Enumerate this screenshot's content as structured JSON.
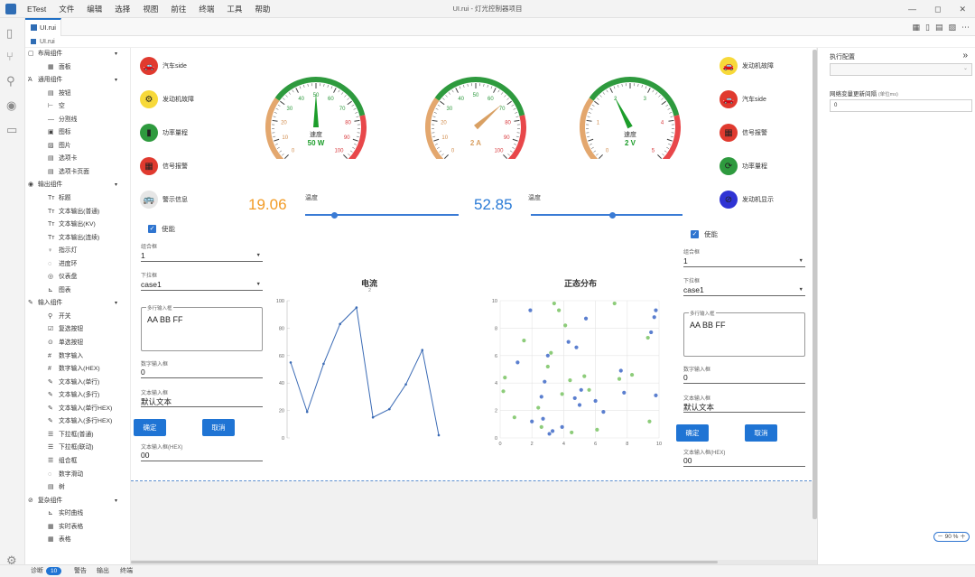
{
  "menubar": {
    "app": "ETest",
    "items": [
      "文件",
      "编辑",
      "选择",
      "视图",
      "前往",
      "终端",
      "工具",
      "帮助"
    ],
    "title": "UI.rui - 灯光控制器项目",
    "buttons": [
      "—",
      "◻",
      "✕"
    ]
  },
  "tabs": {
    "active": "UI.rui"
  },
  "breadcrumb": "UI.rui",
  "activity_icons": [
    "files-icon",
    "branch-icon",
    "search-icon",
    "eye-icon",
    "devices-icon",
    "gear-icon"
  ],
  "toolbar_icons": [
    "grid-icon",
    "doc-icon",
    "save-icon",
    "image-icon",
    "more-icon"
  ],
  "tree": [
    {
      "t": "grp",
      "label": "布局组件",
      "icon": "▢",
      "caret": "▾"
    },
    {
      "t": "sub",
      "label": "面板",
      "icon": "▦"
    },
    {
      "t": "grp",
      "label": "通用组件",
      "icon": "Ά",
      "caret": "▾"
    },
    {
      "t": "sub",
      "label": "按钮",
      "icon": "▤"
    },
    {
      "t": "sub",
      "label": "空",
      "icon": "⊢"
    },
    {
      "t": "sub",
      "label": "分割线",
      "icon": "—"
    },
    {
      "t": "sub",
      "label": "图标",
      "icon": "▣"
    },
    {
      "t": "sub",
      "label": "图片",
      "icon": "▨"
    },
    {
      "t": "sub",
      "label": "选项卡",
      "icon": "▤"
    },
    {
      "t": "sub",
      "label": "选项卡页面",
      "icon": "▤"
    },
    {
      "t": "grp",
      "label": "输出组件",
      "icon": "◉",
      "caret": "▾"
    },
    {
      "t": "sub",
      "label": "标题",
      "icon": "Tт"
    },
    {
      "t": "sub",
      "label": "文本输出(普通)",
      "icon": "Tт"
    },
    {
      "t": "sub",
      "label": "文本输出(KV)",
      "icon": "Tт"
    },
    {
      "t": "sub",
      "label": "文本输出(连续)",
      "icon": "Tт"
    },
    {
      "t": "sub",
      "label": "指示灯",
      "icon": "♀"
    },
    {
      "t": "sub",
      "label": "进度环",
      "icon": "◌"
    },
    {
      "t": "sub",
      "label": "仪表盘",
      "icon": "◎"
    },
    {
      "t": "sub",
      "label": "图表",
      "icon": "⊾"
    },
    {
      "t": "grp",
      "label": "输入组件",
      "icon": "✎",
      "caret": "▾"
    },
    {
      "t": "sub",
      "label": "开关",
      "icon": "⚲"
    },
    {
      "t": "sub",
      "label": "复选按钮",
      "icon": "☑"
    },
    {
      "t": "sub",
      "label": "单选按钮",
      "icon": "⊙"
    },
    {
      "t": "sub",
      "label": "数字输入",
      "icon": "#"
    },
    {
      "t": "sub",
      "label": "数字输入(HEX)",
      "icon": "#"
    },
    {
      "t": "sub",
      "label": "文本输入(单行)",
      "icon": "✎"
    },
    {
      "t": "sub",
      "label": "文本输入(多行)",
      "icon": "✎"
    },
    {
      "t": "sub",
      "label": "文本输入(单行HEX)",
      "icon": "✎"
    },
    {
      "t": "sub",
      "label": "文本输入(多行HEX)",
      "icon": "✎"
    },
    {
      "t": "sub",
      "label": "下拉框(普通)",
      "icon": "☰"
    },
    {
      "t": "sub",
      "label": "下拉框(联动)",
      "icon": "☰"
    },
    {
      "t": "sub",
      "label": "组合框",
      "icon": "☰"
    },
    {
      "t": "sub",
      "label": "数字滑动",
      "icon": "◌"
    },
    {
      "t": "sub",
      "label": "树",
      "icon": "▤"
    },
    {
      "t": "grp",
      "label": "复杂组件",
      "icon": "⊘",
      "caret": "▾"
    },
    {
      "t": "sub",
      "label": "实时曲线",
      "icon": "⊾"
    },
    {
      "t": "sub",
      "label": "实时表格",
      "icon": "▦"
    },
    {
      "t": "sub",
      "label": "表格",
      "icon": "▦"
    }
  ],
  "indicators_left": [
    {
      "label": "汽车side",
      "color": "#e03a2f",
      "icon": "🚗"
    },
    {
      "label": "发动机故障",
      "color": "#f7d93a",
      "icon": "⚙"
    },
    {
      "label": "功率量程",
      "color": "#2e9a3e",
      "icon": "▮"
    },
    {
      "label": "信号报警",
      "color": "#e03a2f",
      "icon": "▦"
    },
    {
      "label": "警示信息",
      "color": "#e6e6e6",
      "icon": "🚌"
    }
  ],
  "indicators_right": [
    {
      "label": "发动机故障",
      "color": "#f7d93a",
      "icon": "🚗"
    },
    {
      "label": "汽车side",
      "color": "#e03a2f",
      "icon": "🚗"
    },
    {
      "label": "信号报警",
      "color": "#e03a2f",
      "icon": "▦"
    },
    {
      "label": "功率量程",
      "color": "#2e9a3e",
      "icon": "⟳"
    },
    {
      "label": "发动机显示",
      "color": "#2f33d4",
      "icon": "⊘"
    }
  ],
  "gauges": [
    {
      "label": "速度",
      "value_text": "50 W",
      "value_color": "#1c9d2a",
      "max": 100,
      "ticks": [
        "0",
        "10",
        "20",
        "30",
        "40",
        "50",
        "60",
        "70",
        "80",
        "90",
        "100"
      ],
      "needle": 50,
      "needle_color": "#1c9d2a"
    },
    {
      "label": "",
      "value_text": "2 A",
      "value_color": "#d9a063",
      "max": 100,
      "ticks": [
        "0",
        "10",
        "20",
        "30",
        "40",
        "50",
        "60",
        "70",
        "80",
        "90",
        "100"
      ],
      "needle": 68,
      "needle_color": "#d9a063"
    },
    {
      "label": "速度",
      "value_text": "2 V",
      "value_color": "#1c9d2a",
      "max": 5,
      "ticks": [
        "0",
        "1",
        "2",
        "3",
        "4",
        "5"
      ],
      "needle": 2,
      "needle_color": "#1c9d2a"
    }
  ],
  "numbers": [
    {
      "value": "19.06",
      "color": "#f29b25"
    },
    {
      "value": "52.85",
      "color": "#2b7bd6"
    }
  ],
  "sliders": [
    {
      "label": "温度",
      "value": 0.19
    },
    {
      "label": "温度",
      "value": 0.53
    }
  ],
  "left_form": {
    "enable_label": "使能",
    "combo_label": "组合框",
    "combo_value": "1",
    "dd_label": "下拉框",
    "dd_value": "case1",
    "ta_label": "多行输入框",
    "ta_value": "AA BB FF",
    "num_label": "数字输入框",
    "num_value": "0",
    "text_label": "文本输入框",
    "text_value": "默认文本",
    "ok": "确定",
    "cancel": "取消",
    "hex_label": "文本输入框(HEX)",
    "hex_value": "00"
  },
  "right_form": {
    "enable_label": "使能",
    "combo_label": "组合框",
    "combo_value": "1",
    "dd_label": "下拉框",
    "dd_value": "case1",
    "ta_label": "多行输入框",
    "ta_value": "AA BB FF",
    "num_label": "数字输入框",
    "num_value": "0",
    "text_label": "文本输入框",
    "text_value": "默认文本",
    "ok": "确定",
    "cancel": "取消",
    "hex_label": "文本输入框(HEX)",
    "hex_value": "00"
  },
  "chart_data": [
    {
      "type": "line",
      "title": "电流",
      "subtitle": "2",
      "x": [
        0,
        1,
        2,
        3,
        4,
        5,
        6,
        7,
        8,
        9
      ],
      "values": [
        55,
        19,
        54,
        83,
        95,
        15,
        21,
        39,
        64,
        2
      ],
      "ylim": [
        0,
        100
      ],
      "yticks": [
        0,
        20,
        40,
        60,
        80,
        100
      ],
      "color": "#3b6bb5"
    },
    {
      "type": "scatter",
      "title": "正态分布",
      "xlim": [
        0,
        10
      ],
      "ylim": [
        0,
        10
      ],
      "xticks": [
        0,
        2,
        4,
        6,
        8,
        10
      ],
      "yticks": [
        0,
        2,
        4,
        6,
        8,
        10
      ],
      "series": [
        {
          "color": "#5b7fcf",
          "points": [
            [
              1.1,
              5.5
            ],
            [
              2.0,
              1.2
            ],
            [
              2.6,
              3.0
            ],
            [
              3.0,
              6.0
            ],
            [
              3.1,
              0.3
            ],
            [
              3.3,
              0.5
            ],
            [
              2.8,
              4.1
            ],
            [
              3.9,
              0.8
            ],
            [
              4.3,
              7.0
            ],
            [
              4.7,
              2.9
            ],
            [
              5.1,
              3.5
            ],
            [
              5.4,
              8.7
            ],
            [
              5.0,
              2.4
            ],
            [
              6.0,
              2.7
            ],
            [
              6.5,
              1.9
            ],
            [
              7.6,
              4.9
            ],
            [
              7.8,
              3.3
            ],
            [
              9.5,
              7.7
            ],
            [
              9.7,
              8.8
            ],
            [
              9.8,
              9.3
            ],
            [
              9.8,
              3.1
            ],
            [
              1.9,
              9.3
            ],
            [
              4.8,
              6.6
            ],
            [
              2.7,
              1.4
            ]
          ]
        },
        {
          "color": "#8dcc7a",
          "points": [
            [
              0.2,
              3.4
            ],
            [
              0.3,
              4.4
            ],
            [
              0.9,
              1.5
            ],
            [
              1.5,
              7.1
            ],
            [
              2.4,
              2.2
            ],
            [
              2.6,
              0.8
            ],
            [
              3.0,
              5.2
            ],
            [
              3.2,
              6.2
            ],
            [
              3.4,
              9.8
            ],
            [
              3.7,
              9.3
            ],
            [
              3.9,
              3.2
            ],
            [
              4.1,
              8.2
            ],
            [
              4.4,
              4.2
            ],
            [
              5.3,
              4.5
            ],
            [
              5.6,
              3.5
            ],
            [
              6.1,
              0.6
            ],
            [
              7.2,
              9.8
            ],
            [
              7.5,
              4.3
            ],
            [
              8.3,
              4.6
            ],
            [
              9.3,
              7.3
            ],
            [
              9.4,
              1.2
            ],
            [
              4.5,
              0.4
            ]
          ]
        }
      ]
    }
  ],
  "props": {
    "title": "执行配置",
    "collapse": "»",
    "dropdown_arrow": "⌄",
    "label": "网络变量更新间隔",
    "unit": "(单位ms)",
    "value": "0",
    "zoom": "－ 90 % ＋"
  },
  "status": {
    "diag": "诊断",
    "count": "10",
    "warn": "警告",
    "out": "输出",
    "term": "终端"
  }
}
